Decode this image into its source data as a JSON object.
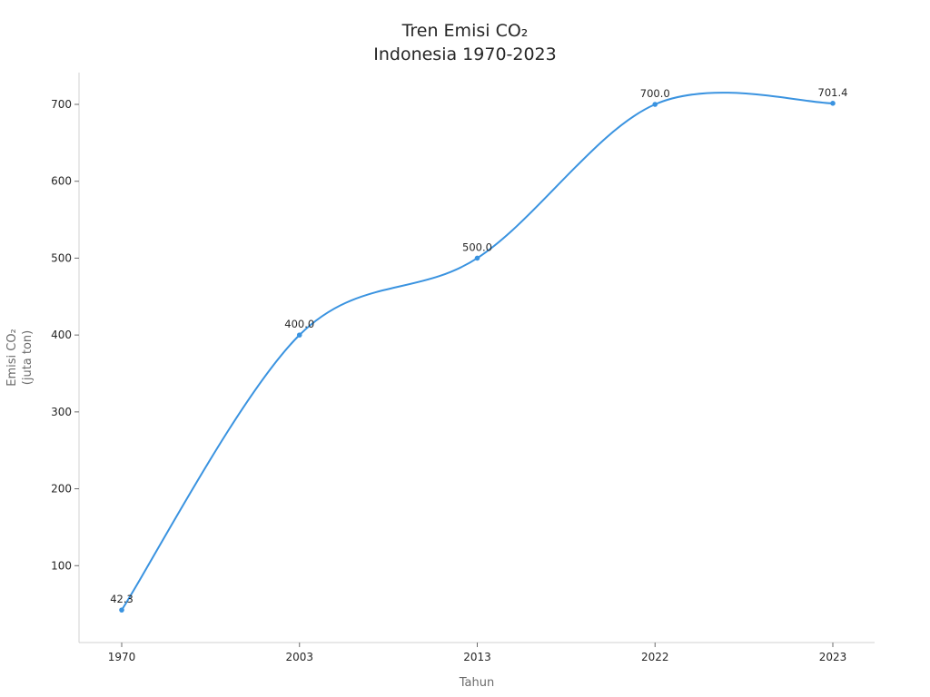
{
  "chart_data": {
    "type": "line",
    "title_lines": [
      "Tren Emisi CO₂",
      "Indonesia 1970-2023"
    ],
    "xlabel": "Tahun",
    "ylabel_lines": [
      "Emisi CO₂",
      "(juta ton)"
    ],
    "categories": [
      "1970",
      "2003",
      "2013",
      "2022",
      "2023"
    ],
    "series": [
      {
        "values": [
          42.3,
          400.0,
          500.0,
          700.0,
          701.4
        ]
      }
    ],
    "data_labels": [
      "42.3",
      "400.0",
      "500.0",
      "700.0",
      "701.4"
    ],
    "yticks": [
      100,
      200,
      300,
      400,
      500,
      600,
      700
    ],
    "ylim": [
      0,
      740
    ],
    "x_scale": "categorical",
    "line_style": "smooth",
    "grid": false,
    "colors": {
      "line": "#3a93e0",
      "text": "#262626",
      "axis_title": "#6b6b6b"
    }
  }
}
